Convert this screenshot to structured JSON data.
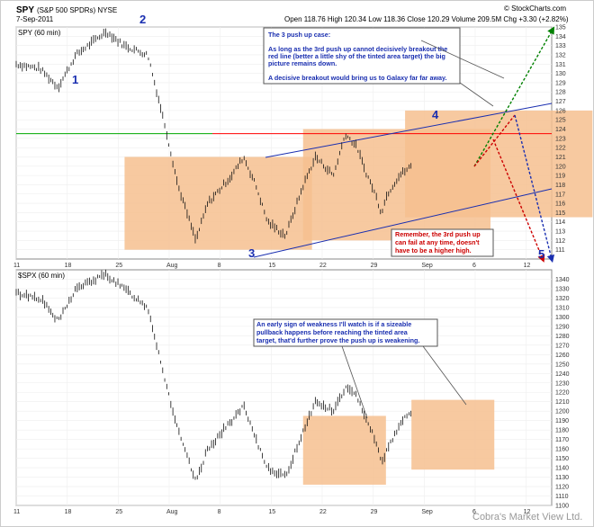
{
  "header": {
    "symbol": "SPY",
    "desc": "(S&P 500 SPDRs) NYSE",
    "date": "7-Sep-2011",
    "quote": "Open 118.76  High 120.34  Low 118.36  Close 120.29  Volume 209.5M  Chg +3.30 (+2.82%)",
    "brand": "© StockCharts.com"
  },
  "watermark": "Cobra's Market View Ltd.",
  "chart_data": [
    {
      "type": "ohlc",
      "title": "SPY (60 min)",
      "ylim": [
        110,
        135
      ],
      "yticks": [
        111,
        112,
        113,
        114,
        115,
        116,
        117,
        118,
        119,
        120,
        121,
        122,
        123,
        124,
        125,
        126,
        127,
        128,
        129,
        130,
        131,
        132,
        133,
        134,
        135
      ],
      "xticks": [
        "11",
        "18",
        "25",
        "Aug",
        "8",
        "15",
        "22",
        "29",
        "Sep",
        "6",
        "12"
      ],
      "horizontal_line": {
        "value": 123.5,
        "color": "#ff0000"
      },
      "left_line": {
        "value": 123.5,
        "color": "#00aa00"
      },
      "channel": {
        "upper": [
          [
            8,
            116.5
          ],
          [
            15,
            121.5
          ],
          [
            29,
            123.5
          ],
          [
            42,
            126
          ]
        ],
        "lower": [
          [
            8,
            110.5
          ],
          [
            22,
            112
          ],
          [
            42,
            116.5
          ]
        ]
      },
      "boxes": [
        [
          8.5,
          12,
          111,
          121
        ],
        [
          22.5,
          26,
          112,
          124
        ],
        [
          30.5,
          34,
          114.5,
          126
        ]
      ],
      "arrows": [
        {
          "from": [
            31,
            119.5
          ],
          "to": [
            41,
            134.5
          ],
          "color": "#008000"
        },
        {
          "from": [
            31,
            122
          ],
          "to": [
            41,
            110.5
          ],
          "color": "#1a2fb0"
        },
        {
          "from": [
            31,
            124
          ],
          "to": [
            39,
            111
          ],
          "color": "#cc0000"
        }
      ],
      "waves": [
        {
          "label": "1",
          "x": 3.5,
          "y": 128
        },
        {
          "label": "2",
          "x": 7.5,
          "y": 134.8
        },
        {
          "label": "3",
          "x": 13.5,
          "y": 110.5
        },
        {
          "label": "4",
          "x": 24.5,
          "y": 124.5
        },
        {
          "label": "5",
          "x": 30.5,
          "y": 110.5
        }
      ],
      "notes": [
        {
          "color": "blue",
          "lines": [
            "The 3 push up case:",
            "",
            "As long as the 3rd push up cannot decisively breakout the",
            "red line (better a little shy of the tinted area target) the big",
            "picture remains down.",
            "",
            "A decisive breakout would bring us to Galaxy far far away."
          ]
        },
        {
          "color": "red",
          "lines": [
            "Remember, the 3rd push up",
            "can fail at any time, doesn't",
            "have to be a higher high."
          ]
        }
      ]
    },
    {
      "type": "ohlc",
      "title": "$SPX (60 min)",
      "ylim": [
        1100,
        1350
      ],
      "yticks": [
        1100,
        1110,
        1120,
        1130,
        1140,
        1150,
        1160,
        1170,
        1180,
        1190,
        1200,
        1210,
        1220,
        1230,
        1240,
        1250,
        1260,
        1270,
        1280,
        1290,
        1300,
        1310,
        1320,
        1330,
        1340
      ],
      "xticks": [
        "11",
        "18",
        "25",
        "Aug",
        "8",
        "15",
        "22",
        "29",
        "Sep",
        "6",
        "12"
      ],
      "boxes": [
        [
          22.5,
          23.5,
          1122,
          1195
        ],
        [
          31,
          32,
          1138,
          1212
        ]
      ],
      "notes": [
        {
          "color": "blue",
          "lines": [
            "An early sign of weakness I'll watch is if a sizeable",
            "pullback happens before reaching the tinted area",
            "target, that'd further prove the push up is weakening."
          ]
        }
      ]
    }
  ]
}
